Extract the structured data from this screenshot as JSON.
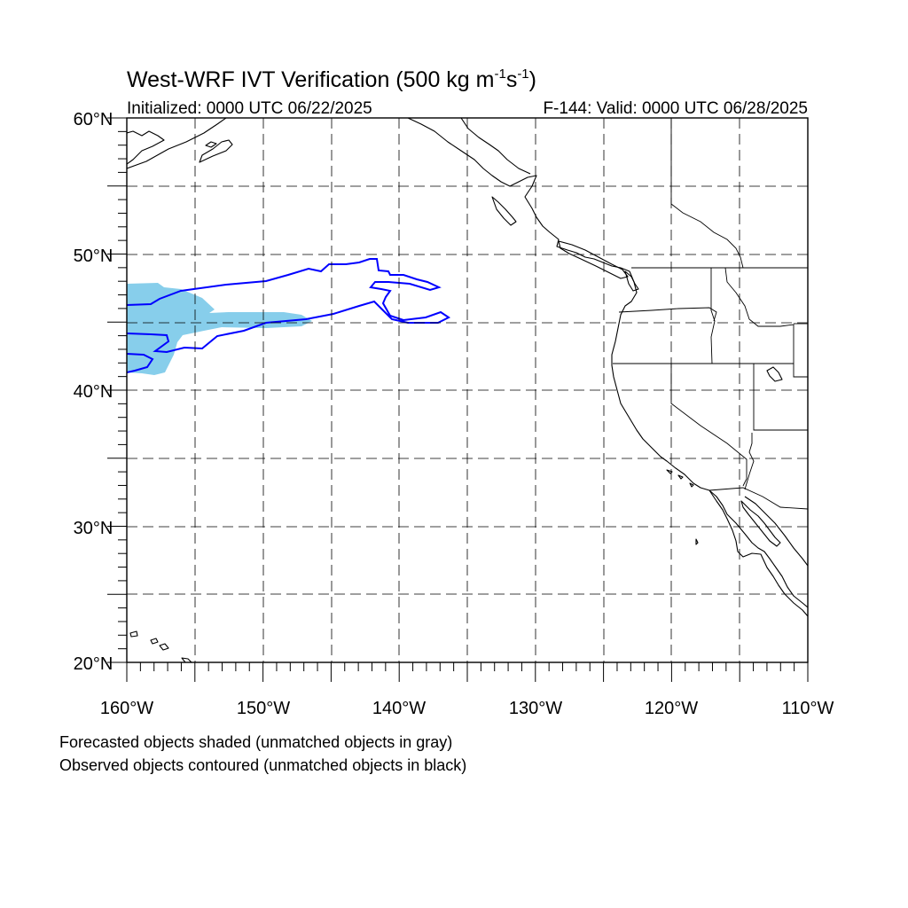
{
  "title": {
    "main": "West-WRF IVT Verification (500 kg m",
    "sup1": "-1",
    "mid": "s",
    "sup2": "-1",
    "end": ")"
  },
  "initialized": "Initialized: 0000 UTC 06/22/2025",
  "valid": "F-144: Valid: 0000 UTC 06/28/2025",
  "lat_labels": [
    "60°N",
    "50°N",
    "40°N",
    "30°N",
    "20°N"
  ],
  "lon_labels": [
    "160°W",
    "150°W",
    "140°W",
    "130°W",
    "120°W",
    "110°W"
  ],
  "notes": [
    "Forecasted objects shaded (unmatched objects in gray)",
    "Observed objects contoured (unmatched objects in black)"
  ],
  "map": {
    "lon_range": [
      -160,
      -110
    ],
    "lat_range": [
      20,
      60
    ],
    "grid_spacing_deg": 5,
    "colors": {
      "forecast_fill": "#87ceeb",
      "observed_contour": "#0000ff",
      "coastline": "#000000"
    }
  }
}
